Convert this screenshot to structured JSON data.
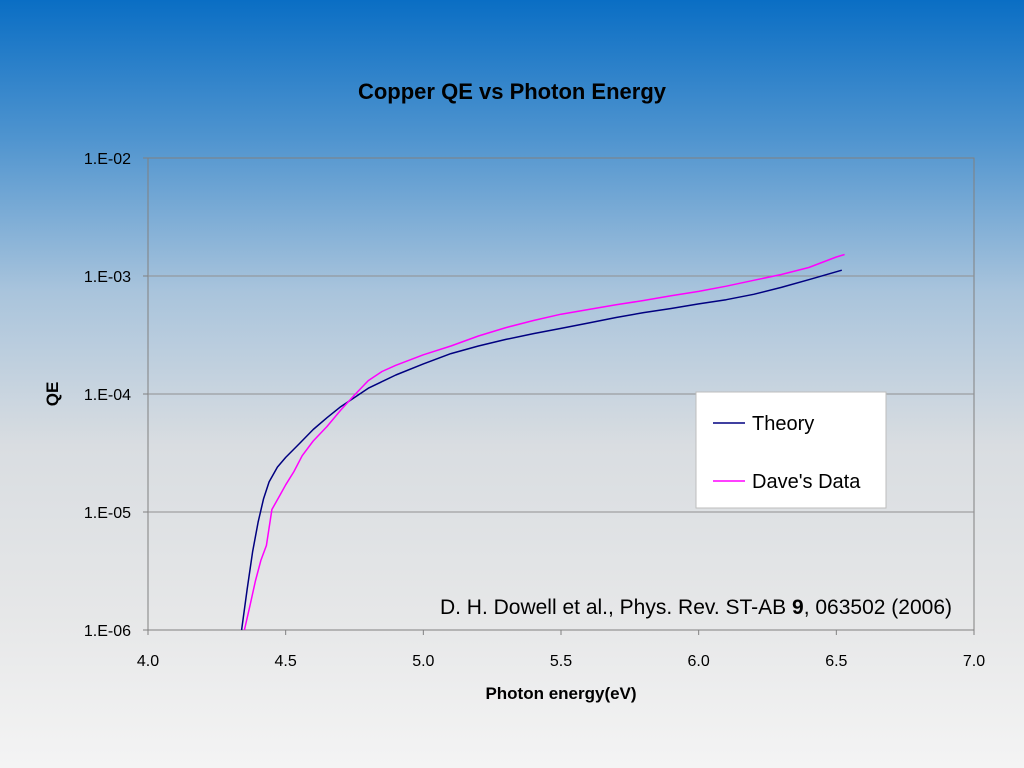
{
  "chart_data": {
    "type": "line",
    "title": "Copper QE vs Photon Energy",
    "xlabel": "Photon energy(eV)",
    "ylabel": "QE",
    "xlim": [
      4.0,
      7.0
    ],
    "ylim": [
      1e-06,
      0.01
    ],
    "y_scale": "log",
    "x_ticks": [
      "4.0",
      "4.5",
      "5.0",
      "5.5",
      "6.0",
      "6.5",
      "7.0"
    ],
    "y_ticks": [
      "1.E-02",
      "1.E-03",
      "1.E-04",
      "1.E-05",
      "1.E-06"
    ],
    "grid": true,
    "legend_position": "right",
    "series": [
      {
        "name": "Theory",
        "color": "#000080",
        "x": [
          4.34,
          4.36,
          4.38,
          4.4,
          4.42,
          4.44,
          4.47,
          4.5,
          4.55,
          4.6,
          4.65,
          4.7,
          4.8,
          4.9,
          5.0,
          5.1,
          5.2,
          5.3,
          5.4,
          5.5,
          5.6,
          5.7,
          5.8,
          5.9,
          6.0,
          6.1,
          6.2,
          6.3,
          6.4,
          6.52
        ],
        "y": [
          1e-06,
          2.2e-06,
          4.6e-06,
          8.2e-06,
          1.3e-05,
          1.8e-05,
          2.4e-05,
          2.9e-05,
          3.8e-05,
          5e-05,
          6.3e-05,
          7.8e-05,
          0.000112,
          0.000145,
          0.00018,
          0.00022,
          0.000255,
          0.00029,
          0.000325,
          0.00036,
          0.0004,
          0.000445,
          0.00049,
          0.00053,
          0.00058,
          0.00063,
          0.0007,
          0.0008,
          0.00093,
          0.00112
        ]
      },
      {
        "name": "Dave's Data",
        "color": "#ff00ff",
        "x": [
          4.35,
          4.37,
          4.39,
          4.41,
          4.43,
          4.45,
          4.48,
          4.5,
          4.53,
          4.56,
          4.6,
          4.65,
          4.7,
          4.75,
          4.8,
          4.85,
          4.9,
          5.0,
          5.1,
          5.2,
          5.3,
          5.4,
          5.5,
          5.6,
          5.7,
          5.8,
          5.9,
          6.0,
          6.1,
          6.2,
          6.3,
          6.4,
          6.5,
          6.53
        ],
        "y": [
          1e-06,
          1.6e-06,
          2.6e-06,
          3.9e-06,
          5.2e-06,
          1.05e-05,
          1.4e-05,
          1.7e-05,
          2.2e-05,
          3e-05,
          4e-05,
          5.3e-05,
          7.3e-05,
          9.8e-05,
          0.00013,
          0.000155,
          0.000175,
          0.000215,
          0.000255,
          0.00031,
          0.000365,
          0.00042,
          0.000475,
          0.00052,
          0.00057,
          0.00062,
          0.00068,
          0.00074,
          0.00082,
          0.00092,
          0.00103,
          0.00118,
          0.00145,
          0.00152
        ]
      }
    ],
    "annotation": {
      "prefix": "D. H. Dowell et al., Phys. Rev. ST-AB ",
      "bold": "9",
      "suffix": ", 063502 (2006)"
    }
  }
}
